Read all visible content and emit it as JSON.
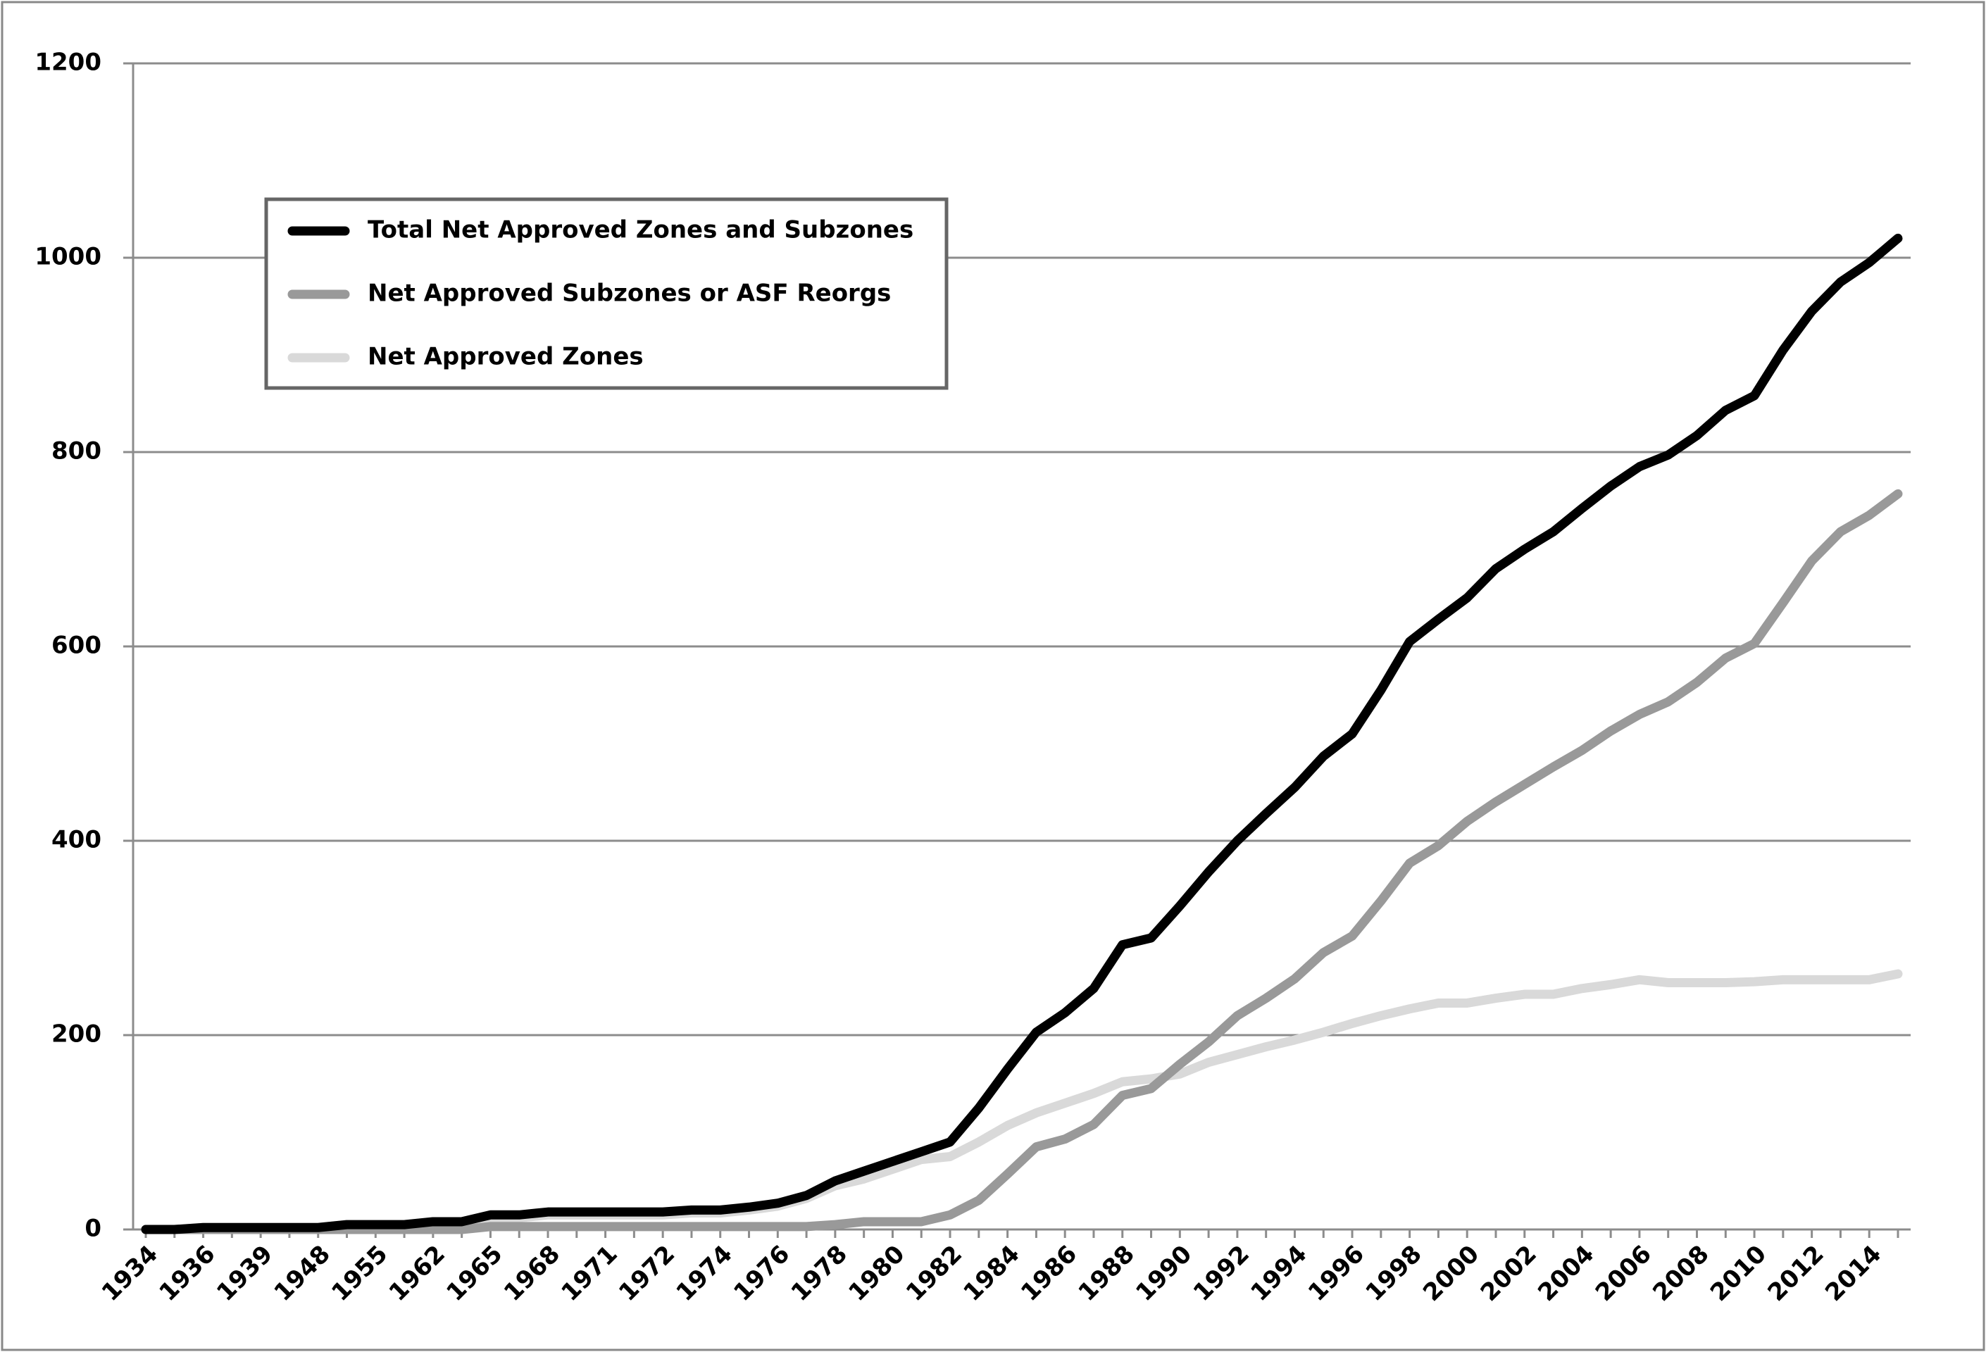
{
  "chart_data": {
    "type": "line",
    "categories": [
      "1934",
      null,
      "1936",
      null,
      "1939",
      null,
      "1948",
      null,
      "1955",
      null,
      "1962",
      null,
      "1965",
      null,
      "1968",
      null,
      "1971",
      null,
      "1972",
      null,
      "1974",
      null,
      "1976",
      null,
      "1978",
      null,
      "1980",
      null,
      "1982",
      null,
      "1984",
      null,
      "1986",
      null,
      "1988",
      null,
      "1990",
      null,
      "1992",
      null,
      "1994",
      null,
      "1996",
      null,
      "1998",
      null,
      "2000",
      null,
      "2002",
      null,
      "2004",
      null,
      "2006",
      null,
      "2008",
      null,
      "2010",
      null,
      "2012",
      null,
      "2014",
      null
    ],
    "series": [
      {
        "name": "Total Net Approved Zones and Subzones",
        "color": "#000000",
        "values": [
          0,
          0,
          2,
          2,
          2,
          2,
          2,
          5,
          5,
          5,
          8,
          8,
          15,
          15,
          18,
          18,
          18,
          18,
          18,
          20,
          20,
          23,
          27,
          35,
          50,
          60,
          70,
          80,
          90,
          125,
          165,
          203,
          223,
          248,
          293,
          300,
          333,
          368,
          400,
          428,
          455,
          487,
          510,
          555,
          605,
          628,
          650,
          680,
          700,
          718,
          742,
          765,
          785,
          797,
          817,
          843,
          858,
          905,
          945,
          975,
          995,
          1020
        ]
      },
      {
        "name": "Net Approved Subzones or ASF Reorgs",
        "color": "#999999",
        "values": [
          0,
          0,
          0,
          0,
          0,
          0,
          0,
          0,
          0,
          0,
          0,
          0,
          3,
          3,
          3,
          3,
          3,
          3,
          3,
          3,
          3,
          3,
          3,
          3,
          5,
          8,
          8,
          8,
          15,
          30,
          57,
          85,
          93,
          108,
          138,
          145,
          170,
          193,
          220,
          238,
          258,
          285,
          302,
          338,
          377,
          395,
          420,
          440,
          458,
          476,
          493,
          513,
          530,
          543,
          563,
          588,
          603,
          645,
          688,
          718,
          735,
          757
        ]
      },
      {
        "name": "Net Approved Zones",
        "color": "#d9d9d9",
        "values": [
          0,
          0,
          2,
          2,
          2,
          2,
          2,
          5,
          5,
          5,
          8,
          8,
          12,
          12,
          15,
          15,
          15,
          15,
          15,
          17,
          17,
          20,
          24,
          32,
          45,
          52,
          62,
          72,
          75,
          90,
          107,
          120,
          130,
          140,
          152,
          155,
          160,
          172,
          180,
          188,
          195,
          203,
          212,
          220,
          227,
          233,
          233,
          238,
          242,
          242,
          248,
          252,
          257,
          254,
          254,
          254,
          255,
          257,
          257,
          257,
          257,
          263
        ]
      }
    ],
    "ylim": [
      0,
      1200
    ],
    "yticks": [
      0,
      200,
      400,
      600,
      800,
      1000,
      1200
    ],
    "grid": true,
    "legend": "upper left"
  }
}
